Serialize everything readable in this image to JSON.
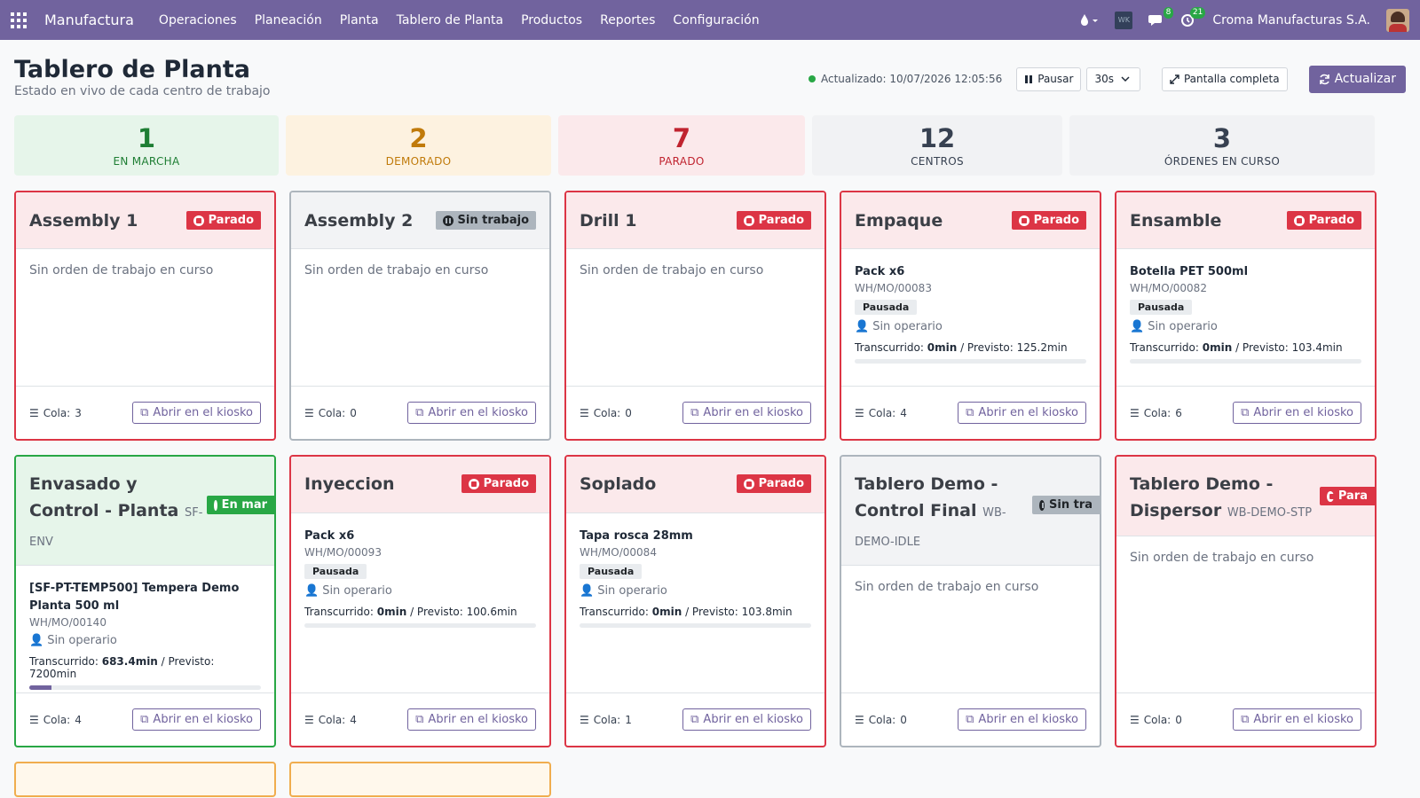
{
  "navbar": {
    "brand": "Manufactura",
    "menu": [
      "Operaciones",
      "Planeación",
      "Planta",
      "Tablero de Planta",
      "Productos",
      "Reportes",
      "Configuración"
    ],
    "messages_count": "8",
    "activities_count": "21",
    "company": "Croma Manufacturas S.A.",
    "company_logo_text": "WK"
  },
  "header": {
    "title": "Tablero de Planta",
    "subtitle": "Estado en vivo de cada centro de trabajo",
    "updated": "Actualizado: 10/07/2026 12:05:56",
    "pause_label": "Pausar",
    "interval": "30s",
    "fullscreen_label": "Pantalla completa",
    "refresh_label": "Actualizar"
  },
  "summary": [
    {
      "value": "1",
      "label": "EN MARCHA",
      "color": "#1e7e34",
      "bg": "#e6f5ea"
    },
    {
      "value": "2",
      "label": "DEMORADO",
      "color": "#c07a0a",
      "bg": "#fdf2e0"
    },
    {
      "value": "7",
      "label": "PARADO",
      "color": "#c0232f",
      "bg": "#fbe9eb"
    },
    {
      "value": "12",
      "label": "CENTROS",
      "color": "#374151",
      "bg": "#f1f2f4"
    },
    {
      "value": "3",
      "label": "ÓRDENES EN CURSO",
      "color": "#374151",
      "bg": "#f1f2f4"
    }
  ],
  "labels": {
    "no_order": "Sin orden de trabajo en curso",
    "queue_prefix": "Cola: ",
    "kiosk": "Abrir en el kiosko",
    "operator": "Sin operario",
    "elapsed_prefix": "Transcurrido: ",
    "planned_prefix": " / Previsto: "
  },
  "cards": [
    {
      "name": "Assembly 1",
      "status": "Parado",
      "queue": "3"
    },
    {
      "name": "Assembly 2",
      "status": "Sin trabajo",
      "queue": "0"
    },
    {
      "name": "Drill 1",
      "status": "Parado",
      "queue": "0"
    },
    {
      "name": "Empaque",
      "status": "Parado",
      "queue": "4",
      "product": "Pack x6",
      "mo": "WH/MO/00083",
      "state": "Pausada",
      "elapsed": "0min",
      "planned": "125.2min",
      "progress": 0
    },
    {
      "name": "Ensamble",
      "status": "Parado",
      "queue": "6",
      "product": "Botella PET 500ml",
      "mo": "WH/MO/00082",
      "state": "Pausada",
      "elapsed": "0min",
      "planned": "103.4min",
      "progress": 0
    },
    {
      "name_l1": "Envasado y",
      "name_l2": "Control - Planta",
      "code_a": "SF-",
      "code_b": "ENV",
      "status": "En mar",
      "queue": "4",
      "product": "[SF-PT-TEMP500] Tempera Demo Planta 500 ml",
      "mo": "WH/MO/00140",
      "elapsed": "683.4min",
      "planned": "7200min",
      "progress": 9.5
    },
    {
      "name": "Inyeccion",
      "status": "Parado",
      "queue": "4",
      "product": "Pack x6",
      "mo": "WH/MO/00093",
      "state": "Pausada",
      "elapsed": "0min",
      "planned": "100.6min",
      "progress": 0
    },
    {
      "name": "Soplado",
      "status": "Parado",
      "queue": "1",
      "product": "Tapa rosca 28mm",
      "mo": "WH/MO/00084",
      "state": "Pausada",
      "elapsed": "0min",
      "planned": "103.8min",
      "progress": 0
    },
    {
      "name_l1": "Tablero Demo -",
      "name_l2": "Control Final",
      "code_a": "WB-",
      "code_b": "DEMO-IDLE",
      "status": "Sin tra",
      "queue": "0"
    },
    {
      "name_l1": "Tablero Demo -",
      "name_l2": "Dispersor",
      "code_a": "WB-DEMO-STP",
      "status": "Para",
      "queue": "0"
    }
  ]
}
